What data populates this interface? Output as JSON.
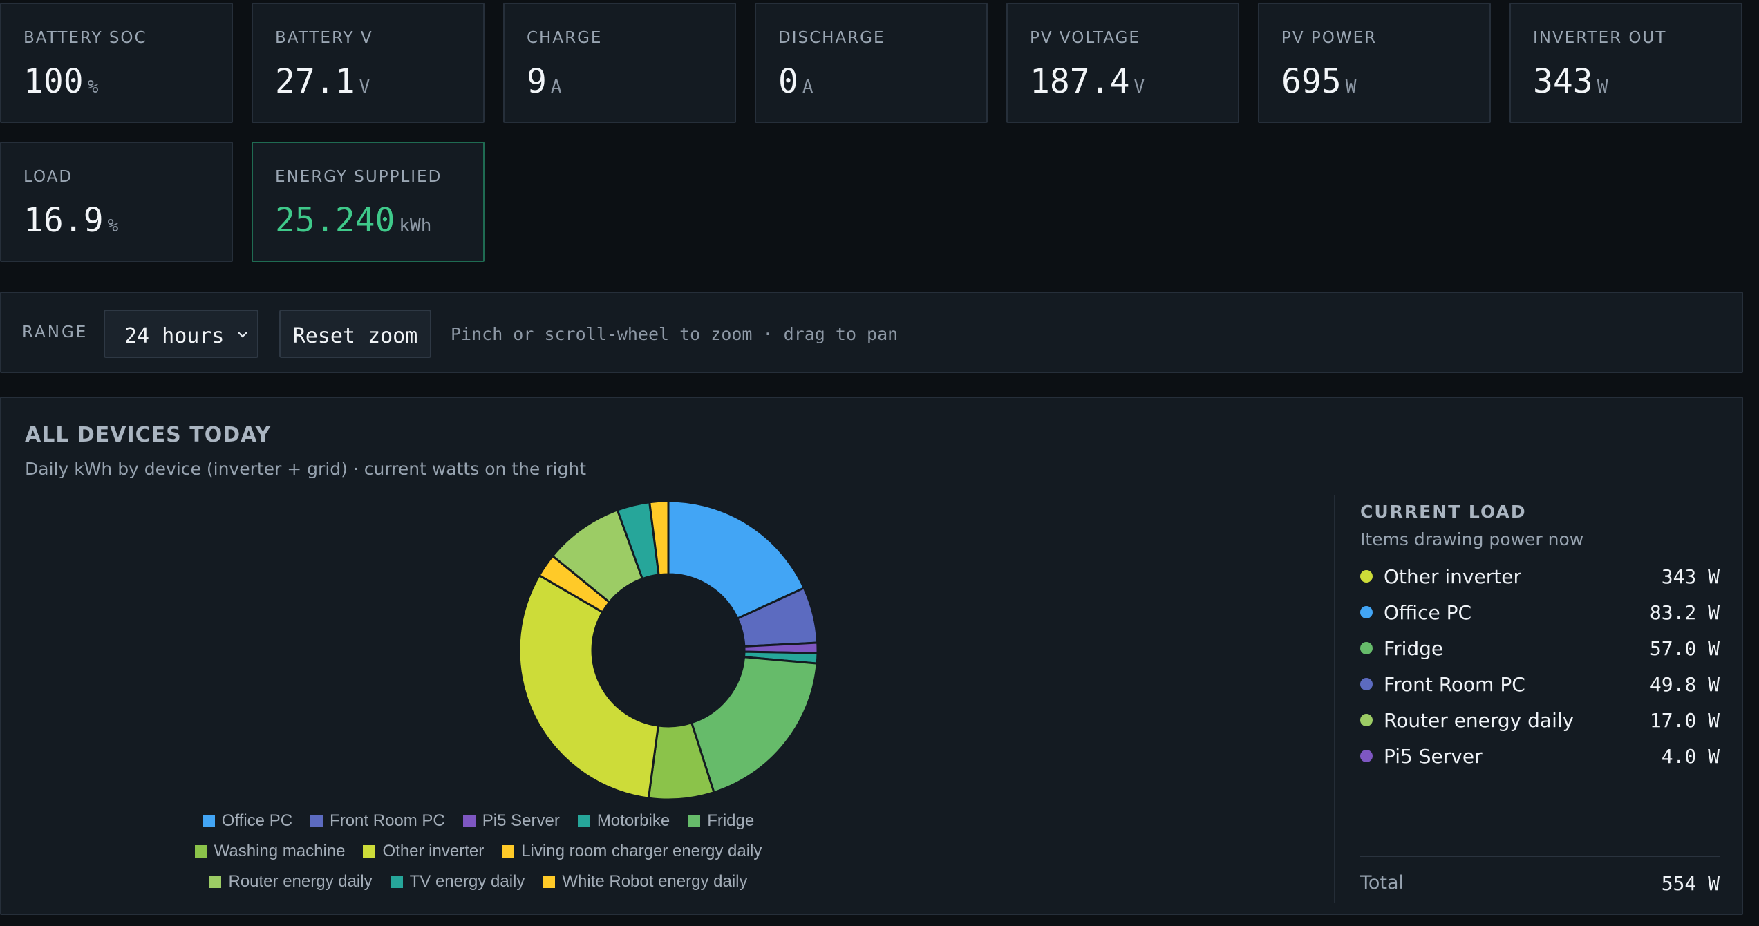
{
  "stats": [
    {
      "label": "BATTERY SOC",
      "value": "100",
      "unit": "%"
    },
    {
      "label": "BATTERY V",
      "value": "27.1",
      "unit": "V"
    },
    {
      "label": "CHARGE",
      "value": "9",
      "unit": "A"
    },
    {
      "label": "DISCHARGE",
      "value": "0",
      "unit": "A"
    },
    {
      "label": "PV VOLTAGE",
      "value": "187.4",
      "unit": "V"
    },
    {
      "label": "PV POWER",
      "value": "695",
      "unit": "W"
    },
    {
      "label": "INVERTER OUT",
      "value": "343",
      "unit": "W"
    },
    {
      "label": "LOAD",
      "value": "16.9",
      "unit": "%"
    },
    {
      "label": "ENERGY SUPPLIED",
      "value": "25.240",
      "unit": "kWh",
      "accent": "#3fc98a"
    }
  ],
  "toolbar": {
    "range_label": "RANGE",
    "range_value": "24 hours",
    "reset_label": "Reset zoom",
    "hint": "Pinch or scroll-wheel to zoom · drag to pan"
  },
  "panel": {
    "title": "ALL DEVICES TODAY",
    "subtitle": "Daily kWh by device (inverter + grid) · current watts on the right"
  },
  "chart_data": {
    "type": "pie",
    "variant": "donut",
    "categories": [
      "Office PC",
      "Front Room PC",
      "Pi5 Server",
      "Motorbike",
      "Fridge",
      "Washing machine",
      "Other inverter",
      "Living room charger energy daily",
      "Router energy daily",
      "TV energy daily",
      "White Robot energy daily"
    ],
    "values": [
      18,
      6,
      1.1,
      1.1,
      18.5,
      7,
      31,
      2.5,
      8.5,
      3.5,
      2.0
    ],
    "colors": [
      "#42a5f5",
      "#5c6bc0",
      "#7e57c2",
      "#26a69a",
      "#66bb6a",
      "#8bc34a",
      "#cddc39",
      "#ffca28",
      "#9ccc65",
      "#26a69a",
      "#ffca28"
    ],
    "legend_position": "bottom"
  },
  "legend_rows": [
    [
      0,
      1,
      2,
      3,
      4
    ],
    [
      5,
      6,
      7
    ],
    [
      8,
      9,
      10
    ]
  ],
  "current_load": {
    "title": "CURRENT LOAD",
    "subtitle": "Items drawing power now",
    "items": [
      {
        "name": "Other inverter",
        "value": "343 W",
        "color": "#cddc39"
      },
      {
        "name": "Office PC",
        "value": "83.2 W",
        "color": "#42a5f5"
      },
      {
        "name": "Fridge",
        "value": "57.0 W",
        "color": "#66bb6a"
      },
      {
        "name": "Front Room PC",
        "value": "49.8 W",
        "color": "#5c6bc0"
      },
      {
        "name": "Router energy daily",
        "value": "17.0 W",
        "color": "#9ccc65"
      },
      {
        "name": "Pi5 Server",
        "value": "4.0 W",
        "color": "#7e57c2"
      }
    ],
    "total_label": "Total",
    "total_value": "554 W"
  }
}
